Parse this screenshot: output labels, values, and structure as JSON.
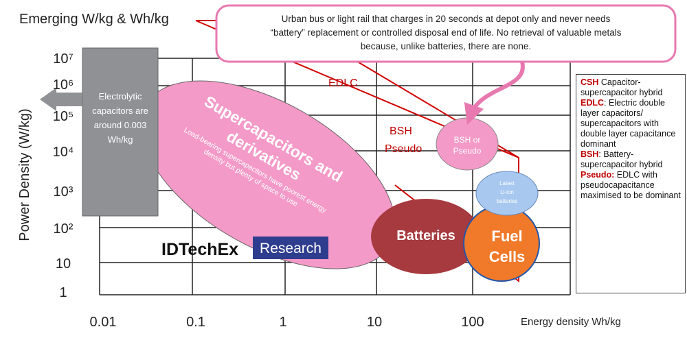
{
  "title": "Emerging W/kg &  Wh/kg",
  "y_axis_label": "Power Density (W/kg)",
  "x_axis_label": "Energy density Wh/kg",
  "y_ticks": [
    "10⁷",
    "10⁶",
    "10⁵",
    "10⁴",
    "10³",
    "10²",
    "10",
    "1"
  ],
  "x_ticks": [
    "0.01",
    "0.1",
    "1",
    "10",
    "100"
  ],
  "callout": [
    "Urban bus or light rail that charges in 20 seconds at depot only and never needs",
    "“battery” replacement or controlled disposal end of life. No retrieval of valuable metals",
    "because, unlike batteries, there are none."
  ],
  "electrolytic": [
    "Electrolytic",
    "capacitors are",
    "around 0.003",
    "Wh/kg"
  ],
  "supercap": {
    "title": [
      "Supercapacitors and",
      "derivatives"
    ],
    "note": [
      "Load-bearing supercapacitors have poorest energy",
      "density but plenty of space to use"
    ]
  },
  "labels": {
    "edlc": "EDLC",
    "bsh": "BSH",
    "pseudo": "Pseudo",
    "bsh_circle": [
      "BSH or",
      "Pseudo"
    ],
    "liion": [
      "Latest",
      "Li-ion",
      "batteries"
    ],
    "batteries": "Batteries",
    "fuel": [
      "Fuel",
      "Cells"
    ]
  },
  "logo": {
    "name": "IDTechEx",
    "tag": "Research"
  },
  "legend": [
    {
      "term": "CSH",
      "text": " Capacitor-supercapacitor hybrid"
    },
    {
      "term": "EDLC",
      "text": ": Electric double layer capacitors/ supercapacitors with double layer capacitance dominant"
    },
    {
      "term": "BSH",
      "text": ": Battery-supercapacitor hybrid"
    },
    {
      "term": "Pseudo:",
      "text": " EDLC with pseudocapacitance maximised to be dominant"
    }
  ]
}
